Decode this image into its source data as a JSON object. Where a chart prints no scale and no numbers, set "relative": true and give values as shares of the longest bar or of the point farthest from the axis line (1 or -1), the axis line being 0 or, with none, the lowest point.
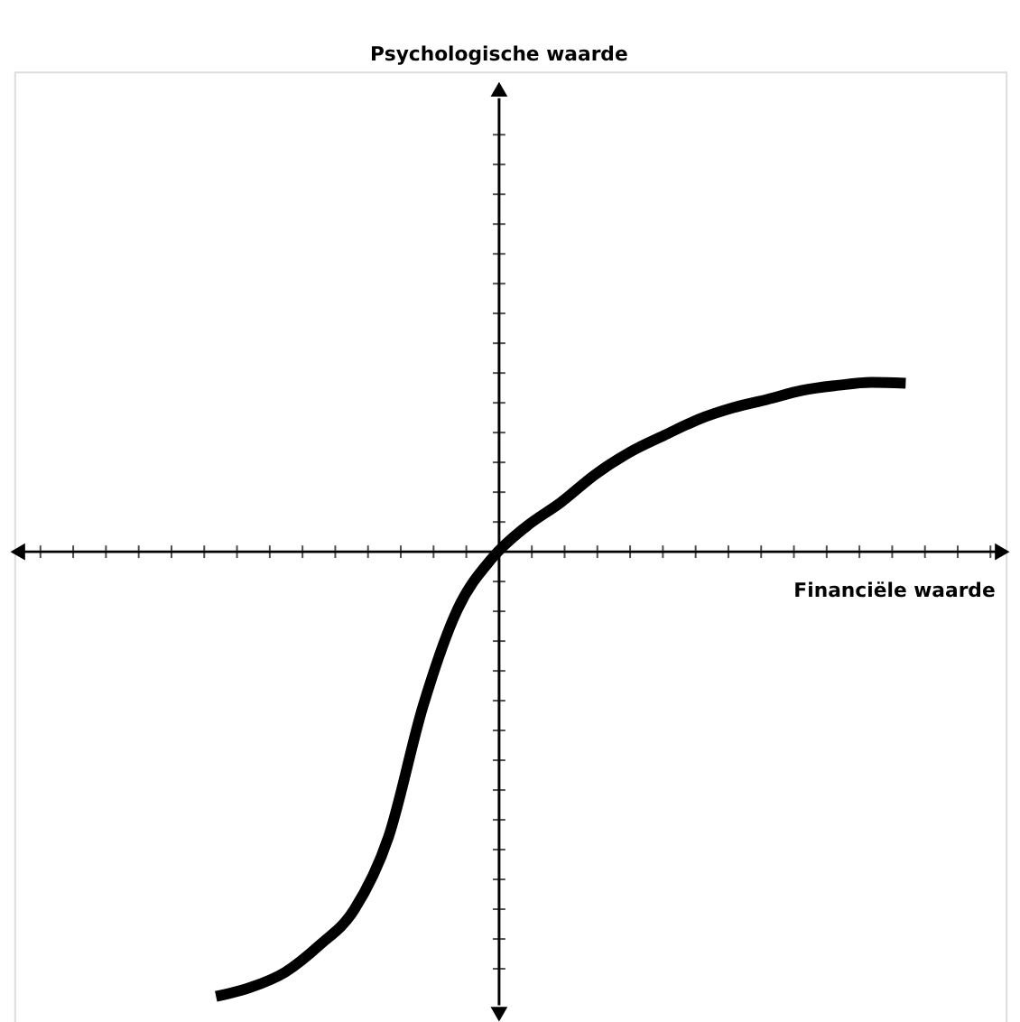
{
  "chart_data": {
    "type": "line",
    "relative": true,
    "xlabel": "Financiële waarde",
    "annotations": [
      "Psychologische waarde"
    ],
    "categories": [
      null,
      null,
      null,
      null,
      null,
      null,
      null,
      null,
      null,
      null,
      null,
      null,
      null,
      null,
      null,
      null,
      null,
      null,
      null,
      null,
      null
    ],
    "series": [
      {
        "color": "#000000",
        "values": [
          -1,
          -0.98,
          -0.946,
          -0.885,
          -0.806,
          -0.642,
          -0.348,
          -0.13,
          -0.015,
          0.057,
          0.111,
          0.174,
          0.224,
          0.262,
          0.298,
          0.324,
          0.343,
          0.363,
          0.374,
          0.381,
          0.379
        ]
      }
    ],
    "marker": "none",
    "line_style": "solid"
  }
}
